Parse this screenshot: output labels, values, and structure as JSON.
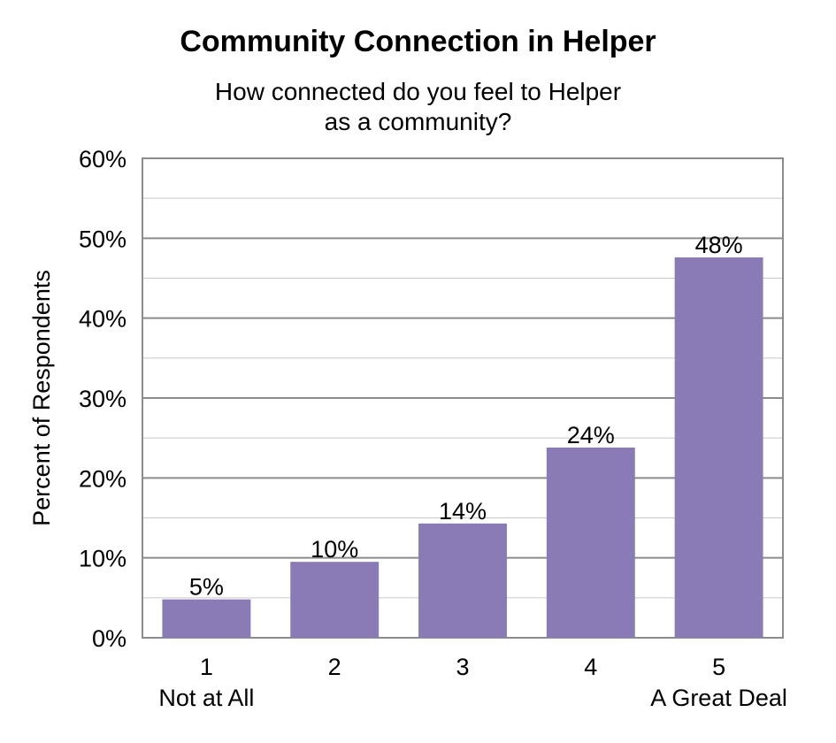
{
  "chart_data": {
    "type": "bar",
    "title": "Community Connection in Helper",
    "subtitle_lines": [
      "How connected do you feel to Helper",
      "as a community?"
    ],
    "ylabel": "Percent of Respondents",
    "xlabel": "",
    "categories": [
      "1",
      "2",
      "3",
      "4",
      "5"
    ],
    "category_sublabels": [
      "Not at All",
      "",
      "",
      "",
      "A Great Deal"
    ],
    "values": [
      4.8,
      9.5,
      14.3,
      23.8,
      47.6
    ],
    "data_labels": [
      "5%",
      "10%",
      "14%",
      "24%",
      "48%"
    ],
    "ylim": [
      0,
      60
    ],
    "yticks": [
      0,
      10,
      20,
      30,
      40,
      50,
      60
    ],
    "ytick_labels": [
      "0%",
      "10%",
      "20%",
      "30%",
      "40%",
      "50%",
      "60%"
    ],
    "grid": true,
    "legend": "none",
    "colors": {
      "bar": "#8a7bb7",
      "major_grid": "#8c8c8c",
      "minor_grid": "#c8c8c8",
      "plot_border": "#8c8c8c"
    }
  }
}
